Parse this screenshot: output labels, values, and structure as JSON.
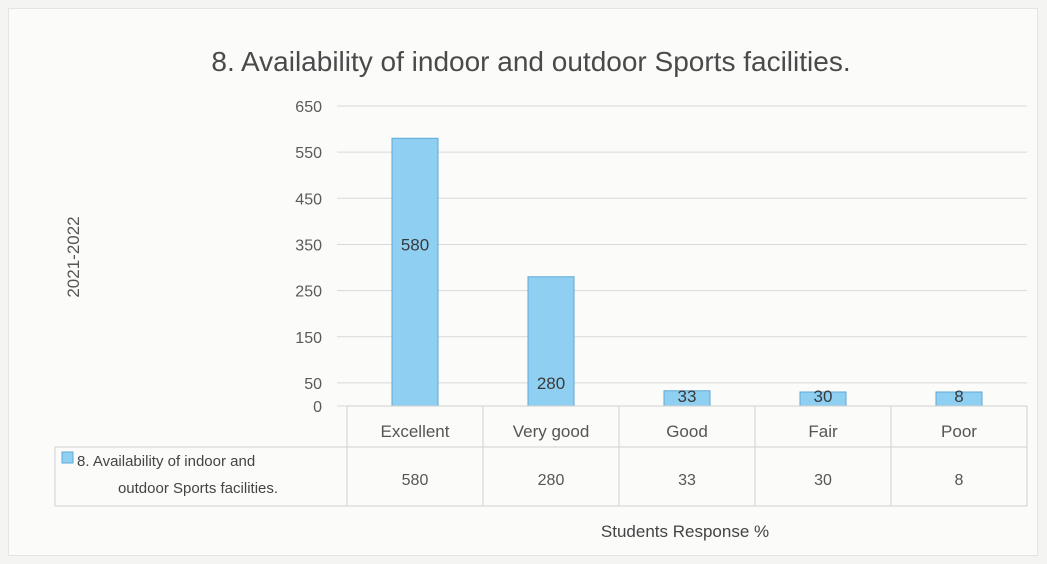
{
  "chart_data": {
    "type": "bar",
    "title": "8. Availability of indoor and outdoor Sports facilities.",
    "ylabel": "2021-2022",
    "xlabel": "Students Response %",
    "categories": [
      "Excellent",
      "Very good",
      "Good",
      "Fair",
      "Poor"
    ],
    "series": [
      {
        "name": "8. Availability of indoor and outdoor Sports facilities.",
        "values": [
          580,
          280,
          33,
          30,
          8
        ]
      }
    ],
    "ylim": [
      0,
      650
    ],
    "yticks": [
      0,
      50,
      150,
      250,
      350,
      450,
      550,
      650
    ],
    "legend_lines": [
      "8. Availability of indoor and",
      "outdoor Sports facilities."
    ],
    "data_table": true,
    "grid": true,
    "colors": {
      "bar": "#8fd0f2",
      "bar_edge": "#5fa9d6",
      "grid": "#d9d9d9",
      "table_border": "#d0d0d0"
    }
  }
}
